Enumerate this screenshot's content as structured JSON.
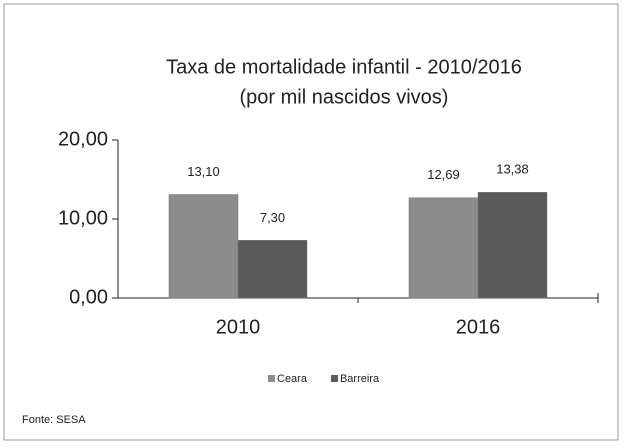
{
  "chart_data": {
    "type": "bar",
    "title": "Taxa de mortalidade infantil  - 2010/2016",
    "subtitle": "(por mil nascidos vivos)",
    "categories": [
      "2010",
      "2016"
    ],
    "series": [
      {
        "name": "Ceara",
        "color": "#8c8c8c",
        "values": [
          13.1,
          12.69
        ],
        "value_labels": [
          "13,10",
          "12,69"
        ]
      },
      {
        "name": "Barreira",
        "color": "#5a5a5a",
        "values": [
          7.3,
          13.38
        ],
        "value_labels": [
          "7,30",
          "13,38"
        ]
      }
    ],
    "ylim": [
      0,
      20
    ],
    "yticks": [
      {
        "value": 0,
        "label": "0,00"
      },
      {
        "value": 10,
        "label": "10,00"
      },
      {
        "value": 20,
        "label": "20,00"
      }
    ],
    "source": "Fonte: SESA"
  }
}
